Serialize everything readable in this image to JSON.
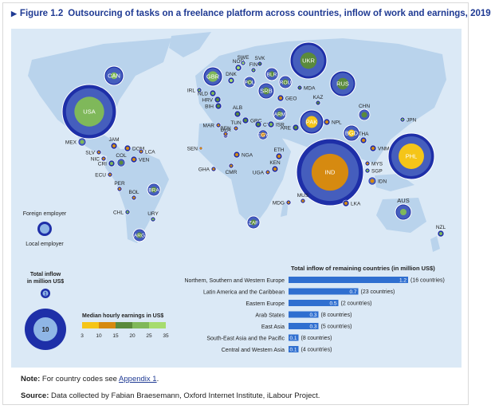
{
  "figure": {
    "title_prefix": "Figure 1.2",
    "title": "Outsourcing of tasks on a freelance platform across countries, inflow of work and earnings, 2019"
  },
  "legend": {
    "foreign_employer": "Foreign employer",
    "local_employer": "Local employer",
    "total_inflow_title": "Total inflow",
    "total_inflow_unit": "in million US$",
    "size_small_label": "1",
    "size_large_label": "10",
    "earnings_title": "Median hourly earnings in US$",
    "earnings_ticks": [
      "3",
      "10",
      "15",
      "20",
      "25",
      "35"
    ],
    "earnings_colors": [
      "#f5c518",
      "#d68a10",
      "#5a8a3c",
      "#7fb85a",
      "#a6dc6e"
    ]
  },
  "colors": {
    "ocean": "#dbe9f6",
    "land": "#b9d3ec",
    "foreign": "#1e2fa8",
    "local": "#8fb6e6",
    "bar": "#2f6fd0"
  },
  "chart_data": [
    {
      "type": "bubble-map",
      "countries": [
        {
          "code": "CAN",
          "earnings_band": 4
        },
        {
          "code": "USA",
          "earnings_band": 4
        },
        {
          "code": "MEX",
          "earnings_band": 4
        },
        {
          "code": "JAM",
          "earnings_band": 2
        },
        {
          "code": "DOM",
          "earnings_band": 2
        },
        {
          "code": "SLV",
          "earnings_band": 2
        },
        {
          "code": "NIC",
          "earnings_band": 2
        },
        {
          "code": "CRI",
          "earnings_band": 4
        },
        {
          "code": "LCA",
          "earnings_band": 2
        },
        {
          "code": "COL",
          "earnings_band": 3
        },
        {
          "code": "VEN",
          "earnings_band": 2
        },
        {
          "code": "ECU",
          "earnings_band": 2
        },
        {
          "code": "PER",
          "earnings_band": 2
        },
        {
          "code": "BOL",
          "earnings_band": 2
        },
        {
          "code": "BRA",
          "earnings_band": 3
        },
        {
          "code": "CHL",
          "earnings_band": 4
        },
        {
          "code": "URY",
          "earnings_band": 4
        },
        {
          "code": "ARG",
          "earnings_band": 3
        },
        {
          "code": "IRL",
          "earnings_band": 4
        },
        {
          "code": "GBR",
          "earnings_band": 4
        },
        {
          "code": "NLD",
          "earnings_band": 4
        },
        {
          "code": "HRV",
          "earnings_band": 3
        },
        {
          "code": "BIH",
          "earnings_band": 3
        },
        {
          "code": "MAR",
          "earnings_band": 2
        },
        {
          "code": "NOR",
          "earnings_band": 5
        },
        {
          "code": "SWE",
          "earnings_band": 5
        },
        {
          "code": "FIN",
          "earnings_band": 4
        },
        {
          "code": "DNK",
          "earnings_band": 5
        },
        {
          "code": "SVK",
          "earnings_band": 3
        },
        {
          "code": "BLR",
          "earnings_band": 3
        },
        {
          "code": "POL",
          "earnings_band": 3
        },
        {
          "code": "UKR",
          "earnings_band": 3
        },
        {
          "code": "RUS",
          "earnings_band": 3
        },
        {
          "code": "SRB",
          "earnings_band": 3
        },
        {
          "code": "ROU",
          "earnings_band": 3
        },
        {
          "code": "MDA",
          "earnings_band": 3
        },
        {
          "code": "GEO",
          "earnings_band": 2
        },
        {
          "code": "ARM",
          "earnings_band": 3
        },
        {
          "code": "ALB",
          "earnings_band": 3
        },
        {
          "code": "GRC",
          "earnings_band": 3
        },
        {
          "code": "CYP",
          "earnings_band": 3
        },
        {
          "code": "TUN",
          "earnings_band": 2
        },
        {
          "code": "DZA",
          "earnings_band": 2
        },
        {
          "code": "EGY",
          "earnings_band": 2
        },
        {
          "code": "ISR",
          "earnings_band": 4
        },
        {
          "code": "ARE",
          "earnings_band": 3
        },
        {
          "code": "KAZ",
          "earnings_band": 3
        },
        {
          "code": "PAK",
          "earnings_band": 1
        },
        {
          "code": "NPL",
          "earnings_band": 2
        },
        {
          "code": "IND",
          "earnings_band": 2
        },
        {
          "code": "BGD",
          "earnings_band": 1
        },
        {
          "code": "LKA",
          "earnings_band": 2
        },
        {
          "code": "CHN",
          "earnings_band": 3
        },
        {
          "code": "JPN",
          "earnings_band": 4
        },
        {
          "code": "THA",
          "earnings_band": 2
        },
        {
          "code": "VNM",
          "earnings_band": 2
        },
        {
          "code": "MYS",
          "earnings_band": 2
        },
        {
          "code": "SGP",
          "earnings_band": 4
        },
        {
          "code": "IDN",
          "earnings_band": 2
        },
        {
          "code": "PHL",
          "earnings_band": 1
        },
        {
          "code": "AUS",
          "earnings_band": 4
        },
        {
          "code": "NZL",
          "earnings_band": 4
        },
        {
          "code": "SEN",
          "earnings_band": 2
        },
        {
          "code": "BEN",
          "earnings_band": 2
        },
        {
          "code": "NGA",
          "earnings_band": 2
        },
        {
          "code": "GHA",
          "earnings_band": 2
        },
        {
          "code": "CMR",
          "earnings_band": 2
        },
        {
          "code": "ETH",
          "earnings_band": 2
        },
        {
          "code": "KEN",
          "earnings_band": 2
        },
        {
          "code": "UGA",
          "earnings_band": 2
        },
        {
          "code": "ZAF",
          "earnings_band": 3
        },
        {
          "code": "MDG",
          "earnings_band": 2
        },
        {
          "code": "MUS",
          "earnings_band": 2
        }
      ]
    },
    {
      "type": "bar",
      "title": "Total inflow of remaining countries (in million US$)",
      "categories": [
        "Northern, Southern and Western Europe",
        "Latin America and the Caribbean",
        "Eastern Europe",
        "Arab States",
        "East Asia",
        "South-East Asia and the Pacific",
        "Central and Western Asia"
      ],
      "values": [
        1.2,
        0.7,
        0.5,
        0.3,
        0.3,
        0.1,
        0.1
      ],
      "value_labels": [
        "1.2",
        "0.7",
        "0.5",
        "0.3",
        "0.3",
        "0.1",
        "0.1"
      ],
      "notes": [
        "(16 countries)",
        "(23 countries)",
        "(2 countries)",
        "(8 countries)",
        "(5 countries)",
        "(8 countries)",
        "(4 countries)"
      ],
      "xlim": [
        0,
        1.2
      ]
    }
  ],
  "footer": {
    "note_label": "Note:",
    "note_text": "For country codes see",
    "note_link": "Appendix 1",
    "note_end": ".",
    "source_label": "Source:",
    "source_text": "Data collected by Fabian Braesemann, Oxford Internet Institute, iLabour Project."
  }
}
